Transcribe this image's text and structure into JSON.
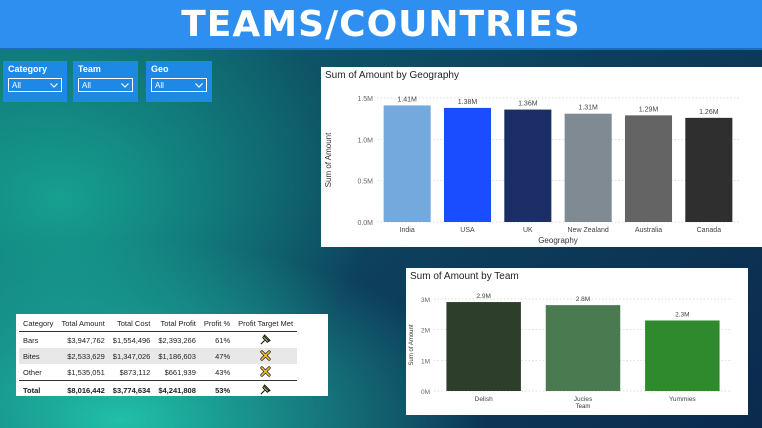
{
  "header": {
    "title": "TEAMS/COUNTRIES"
  },
  "slicers": [
    {
      "label": "Category",
      "value": "All"
    },
    {
      "label": "Team",
      "value": "All"
    },
    {
      "label": "Geo",
      "value": "All"
    }
  ],
  "geo_chart": {
    "title": "Sum of Amount by Geography",
    "chart_data": {
      "type": "bar",
      "title": "Sum of Amount by Geography",
      "xlabel": "Geography",
      "ylabel": "Sum of Amount",
      "ylim": [
        0,
        1.5
      ],
      "yticks": [
        "0.0M",
        "0.5M",
        "1.0M",
        "1.5M"
      ],
      "categories": [
        "India",
        "USA",
        "UK",
        "New Zealand",
        "Australia",
        "Canada"
      ],
      "values": [
        1.41,
        1.38,
        1.36,
        1.31,
        1.29,
        1.26
      ],
      "data_labels": [
        "1.41M",
        "1.38M",
        "1.36M",
        "1.31M",
        "1.29M",
        "1.26M"
      ],
      "colors": [
        "#74a9de",
        "#1a4dff",
        "#1b2f66",
        "#7f8a93",
        "#646464",
        "#2f2f2f"
      ],
      "grid": true
    }
  },
  "team_chart": {
    "title": "Sum of Amount by Team",
    "chart_data": {
      "type": "bar",
      "title": "Sum of Amount by Team",
      "xlabel": "Team",
      "ylabel": "Sum of Amount",
      "ylim": [
        0,
        3
      ],
      "yticks": [
        "0M",
        "1M",
        "2M",
        "3M"
      ],
      "categories": [
        "Delish",
        "Jucies",
        "Yummies"
      ],
      "values": [
        2.9,
        2.8,
        2.3
      ],
      "data_labels": [
        "2.9M",
        "2.8M",
        "2.3M"
      ],
      "colors": [
        "#2d3f2a",
        "#4a7a50",
        "#2e8a2c"
      ],
      "grid": true
    }
  },
  "table": {
    "columns": [
      "Category",
      "Total Amount",
      "Total Cost",
      "Total Profit",
      "Profit %",
      "Profit Target Met"
    ],
    "rows": [
      {
        "category": "Bars",
        "amount": "$3,947,762",
        "cost": "$1,554,496",
        "profit": "$2,393,266",
        "pct": "61%",
        "icon": "pin-icon"
      },
      {
        "category": "Bites",
        "amount": "$2,533,629",
        "cost": "$1,347,026",
        "profit": "$1,186,603",
        "pct": "47%",
        "icon": "x-mark-icon"
      },
      {
        "category": "Other",
        "amount": "$1,535,051",
        "cost": "$873,112",
        "profit": "$661,939",
        "pct": "43%",
        "icon": "x-mark-icon"
      }
    ],
    "total": {
      "category": "Total",
      "amount": "$8,016,442",
      "cost": "$3,774,634",
      "profit": "$4,241,808",
      "pct": "53%",
      "icon": "pin-icon"
    }
  }
}
